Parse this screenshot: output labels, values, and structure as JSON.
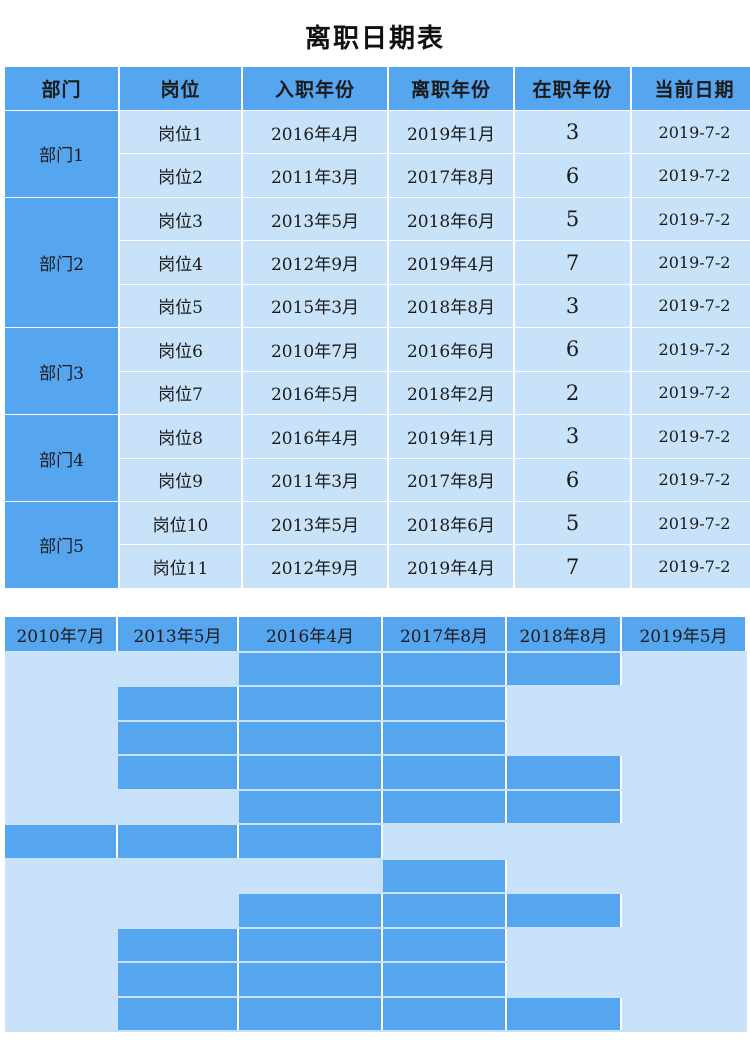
{
  "title": "离职日期表",
  "headers": [
    "部门",
    "岗位",
    "入职年份",
    "离职年份",
    "在职年份",
    "当前日期"
  ],
  "departments": [
    "部门1",
    "部门2",
    "部门3",
    "部门4",
    "部门5"
  ],
  "dept_spans": [
    2,
    3,
    2,
    2,
    2
  ],
  "rows": [
    {
      "position": "岗位1",
      "start": "2016年4月",
      "end": "2019年1月",
      "years": "3",
      "today": "2019-7-2"
    },
    {
      "position": "岗位2",
      "start": "2011年3月",
      "end": "2017年8月",
      "years": "6",
      "today": "2019-7-2"
    },
    {
      "position": "岗位3",
      "start": "2013年5月",
      "end": "2018年6月",
      "years": "5",
      "today": "2019-7-2"
    },
    {
      "position": "岗位4",
      "start": "2012年9月",
      "end": "2019年4月",
      "years": "7",
      "today": "2019-7-2"
    },
    {
      "position": "岗位5",
      "start": "2015年3月",
      "end": "2018年8月",
      "years": "3",
      "today": "2019-7-2"
    },
    {
      "position": "岗位6",
      "start": "2010年7月",
      "end": "2016年6月",
      "years": "6",
      "today": "2019-7-2"
    },
    {
      "position": "岗位7",
      "start": "2016年5月",
      "end": "2018年2月",
      "years": "2",
      "today": "2019-7-2"
    },
    {
      "position": "岗位8",
      "start": "2016年4月",
      "end": "2019年1月",
      "years": "3",
      "today": "2019-7-2"
    },
    {
      "position": "岗位9",
      "start": "2011年3月",
      "end": "2017年8月",
      "years": "6",
      "today": "2019-7-2"
    },
    {
      "position": "岗位10",
      "start": "2013年5月",
      "end": "2018年6月",
      "years": "5",
      "today": "2019-7-2"
    },
    {
      "position": "岗位11",
      "start": "2012年9月",
      "end": "2019年4月",
      "years": "7",
      "today": "2019-7-2"
    }
  ],
  "timeline": {
    "headers": [
      "2010年7月",
      "2013年5月",
      "2016年4月",
      "2017年8月",
      "2018年8月",
      "2019年5月"
    ],
    "rows": [
      [
        0,
        0,
        1,
        1,
        1,
        0
      ],
      [
        0,
        1,
        1,
        1,
        0,
        0
      ],
      [
        0,
        1,
        1,
        1,
        0,
        0
      ],
      [
        0,
        1,
        1,
        1,
        1,
        0
      ],
      [
        0,
        0,
        1,
        1,
        1,
        0
      ],
      [
        1,
        1,
        1,
        0,
        0,
        0
      ],
      [
        0,
        0,
        0,
        1,
        0,
        0
      ],
      [
        0,
        0,
        1,
        1,
        1,
        0
      ],
      [
        0,
        1,
        1,
        1,
        0,
        0
      ],
      [
        0,
        1,
        1,
        1,
        0,
        0
      ],
      [
        0,
        1,
        1,
        1,
        1,
        0
      ]
    ]
  },
  "colors": {
    "header": "#55a5ef",
    "cell": "#c8e2f9",
    "active_bar": "#55a5ef"
  }
}
